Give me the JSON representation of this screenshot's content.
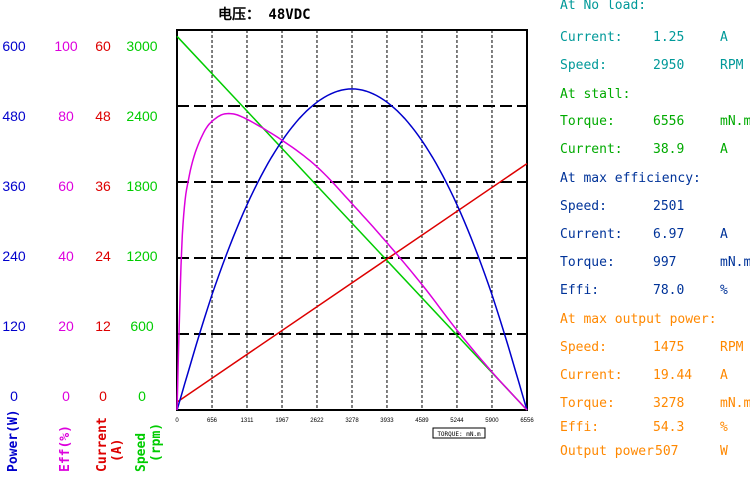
{
  "title": "电压： 48VDC",
  "colors": {
    "power": "#0000cc",
    "eff": "#dd00dd",
    "current": "#dd0000",
    "speed": "#00cc00",
    "info_blue": "#003399",
    "info_green": "#00aa00",
    "info_orange": "#ff8800",
    "info_header_teal": "#009999",
    "grid": "#000000"
  },
  "axes": [
    {
      "key": "power",
      "name_line1": "Power(W)",
      "name_line2": "",
      "ticks": [
        "600",
        "480",
        "360",
        "240",
        "120",
        "0"
      ]
    },
    {
      "key": "eff",
      "name_line1": "Eff(%)",
      "name_line2": "",
      "ticks": [
        "100",
        "80",
        "60",
        "40",
        "20",
        "0"
      ]
    },
    {
      "key": "current",
      "name_line1": "Current",
      "name_line2": "(A)",
      "ticks": [
        "60",
        "48",
        "36",
        "24",
        "12",
        "0"
      ]
    },
    {
      "key": "speed",
      "name_line1": "Speed",
      "name_line2": "(rpm)",
      "ticks": [
        "3000",
        "2400",
        "1800",
        "1200",
        "600",
        "0"
      ]
    }
  ],
  "info": {
    "no_load": {
      "header": "At No load:",
      "rows": [
        {
          "label": "Current:",
          "value": "1.25",
          "unit": "A"
        },
        {
          "label": "Speed:",
          "value": "2950",
          "unit": "RPM"
        }
      ]
    },
    "stall": {
      "header": "At stall:",
      "rows": [
        {
          "label": "Torque:",
          "value": "6556",
          "unit": "mN.m"
        },
        {
          "label": "Current:",
          "value": "38.9",
          "unit": "A"
        }
      ]
    },
    "max_eff": {
      "header": "At max efficiency:",
      "rows": [
        {
          "label": "Speed:",
          "value": "2501",
          "unit": ""
        },
        {
          "label": "Current:",
          "value": "6.97",
          "unit": "A"
        },
        {
          "label": "Torque:",
          "value": "997",
          "unit": "mN.m"
        },
        {
          "label": "Effi:",
          "value": "78.0",
          "unit": "%"
        }
      ]
    },
    "max_power": {
      "header": "At max output power:",
      "rows": [
        {
          "label": "Speed:",
          "value": "1475",
          "unit": "RPM"
        },
        {
          "label": "Current:",
          "value": "19.44",
          "unit": "A"
        },
        {
          "label": "Torque:",
          "value": "3278",
          "unit": "mN.m"
        },
        {
          "label": "Effi:",
          "value": "54.3",
          "unit": "%"
        },
        {
          "label": "Output power",
          "value": "507",
          "unit": "W"
        }
      ]
    }
  },
  "chart_data": {
    "type": "line",
    "xlabel": "TORQUE: mN.m",
    "x_ticks": [
      0,
      656,
      1311,
      1967,
      2622,
      3278,
      3933,
      4589,
      5244,
      5900,
      6556
    ],
    "xlim": [
      0,
      6556
    ],
    "series": [
      {
        "name": "Speed",
        "axis": "speed",
        "ylim": [
          0,
          3000
        ],
        "x": [
          0,
          6556
        ],
        "values": [
          2950,
          0
        ]
      },
      {
        "name": "Current",
        "axis": "current",
        "ylim": [
          0,
          60
        ],
        "x": [
          0,
          6556
        ],
        "values": [
          1.25,
          38.9
        ]
      },
      {
        "name": "Power",
        "axis": "power",
        "ylim": [
          0,
          600
        ],
        "x": [
          0,
          656,
          1311,
          1967,
          2622,
          3278,
          3933,
          4589,
          5244,
          5900,
          6556
        ],
        "values": [
          0,
          182,
          324,
          425,
          486,
          507,
          486,
          425,
          324,
          182,
          0
        ]
      },
      {
        "name": "Eff",
        "axis": "eff",
        "ylim": [
          0,
          100
        ],
        "x": [
          0,
          100,
          250,
          500,
          750,
          997,
          1311,
          1967,
          2622,
          3278,
          3933,
          4589,
          5244,
          5900,
          6556
        ],
        "values": [
          0,
          46,
          63,
          73,
          77,
          78.0,
          76.5,
          71,
          64,
          54.3,
          44,
          33,
          21,
          10,
          0
        ]
      }
    ]
  }
}
